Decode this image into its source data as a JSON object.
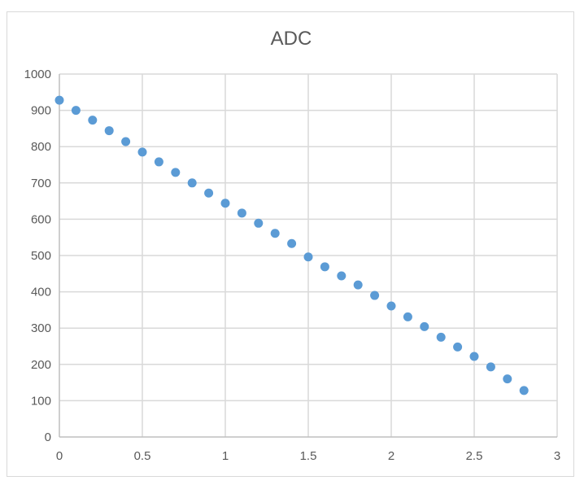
{
  "chart_data": {
    "type": "scatter",
    "title": "ADC",
    "xlabel": "",
    "ylabel": "",
    "xlim": [
      0,
      3
    ],
    "ylim": [
      0,
      1000
    ],
    "x_ticks": [
      "0",
      "0.5",
      "1",
      "1.5",
      "2",
      "2.5",
      "3"
    ],
    "y_ticks": [
      "0",
      "100",
      "200",
      "300",
      "400",
      "500",
      "600",
      "700",
      "800",
      "900",
      "1000"
    ],
    "grid": true,
    "legend": "none",
    "marker_color": "#5b9bd5",
    "series": [
      {
        "x": [
          0,
          0.1,
          0.2,
          0.3,
          0.4,
          0.5,
          0.6,
          0.7,
          0.8,
          0.9,
          1.0,
          1.1,
          1.2,
          1.3,
          1.4,
          1.5,
          1.6,
          1.7,
          1.8,
          1.9,
          2.0,
          2.1,
          2.2,
          2.3,
          2.4,
          2.5,
          2.6,
          2.7,
          2.8
        ],
        "y": [
          928,
          900,
          873,
          844,
          814,
          785,
          758,
          729,
          700,
          672,
          644,
          617,
          589,
          561,
          533,
          496,
          469,
          444,
          419,
          390,
          361,
          331,
          304,
          275,
          248,
          222,
          193,
          160,
          128
        ]
      }
    ]
  }
}
